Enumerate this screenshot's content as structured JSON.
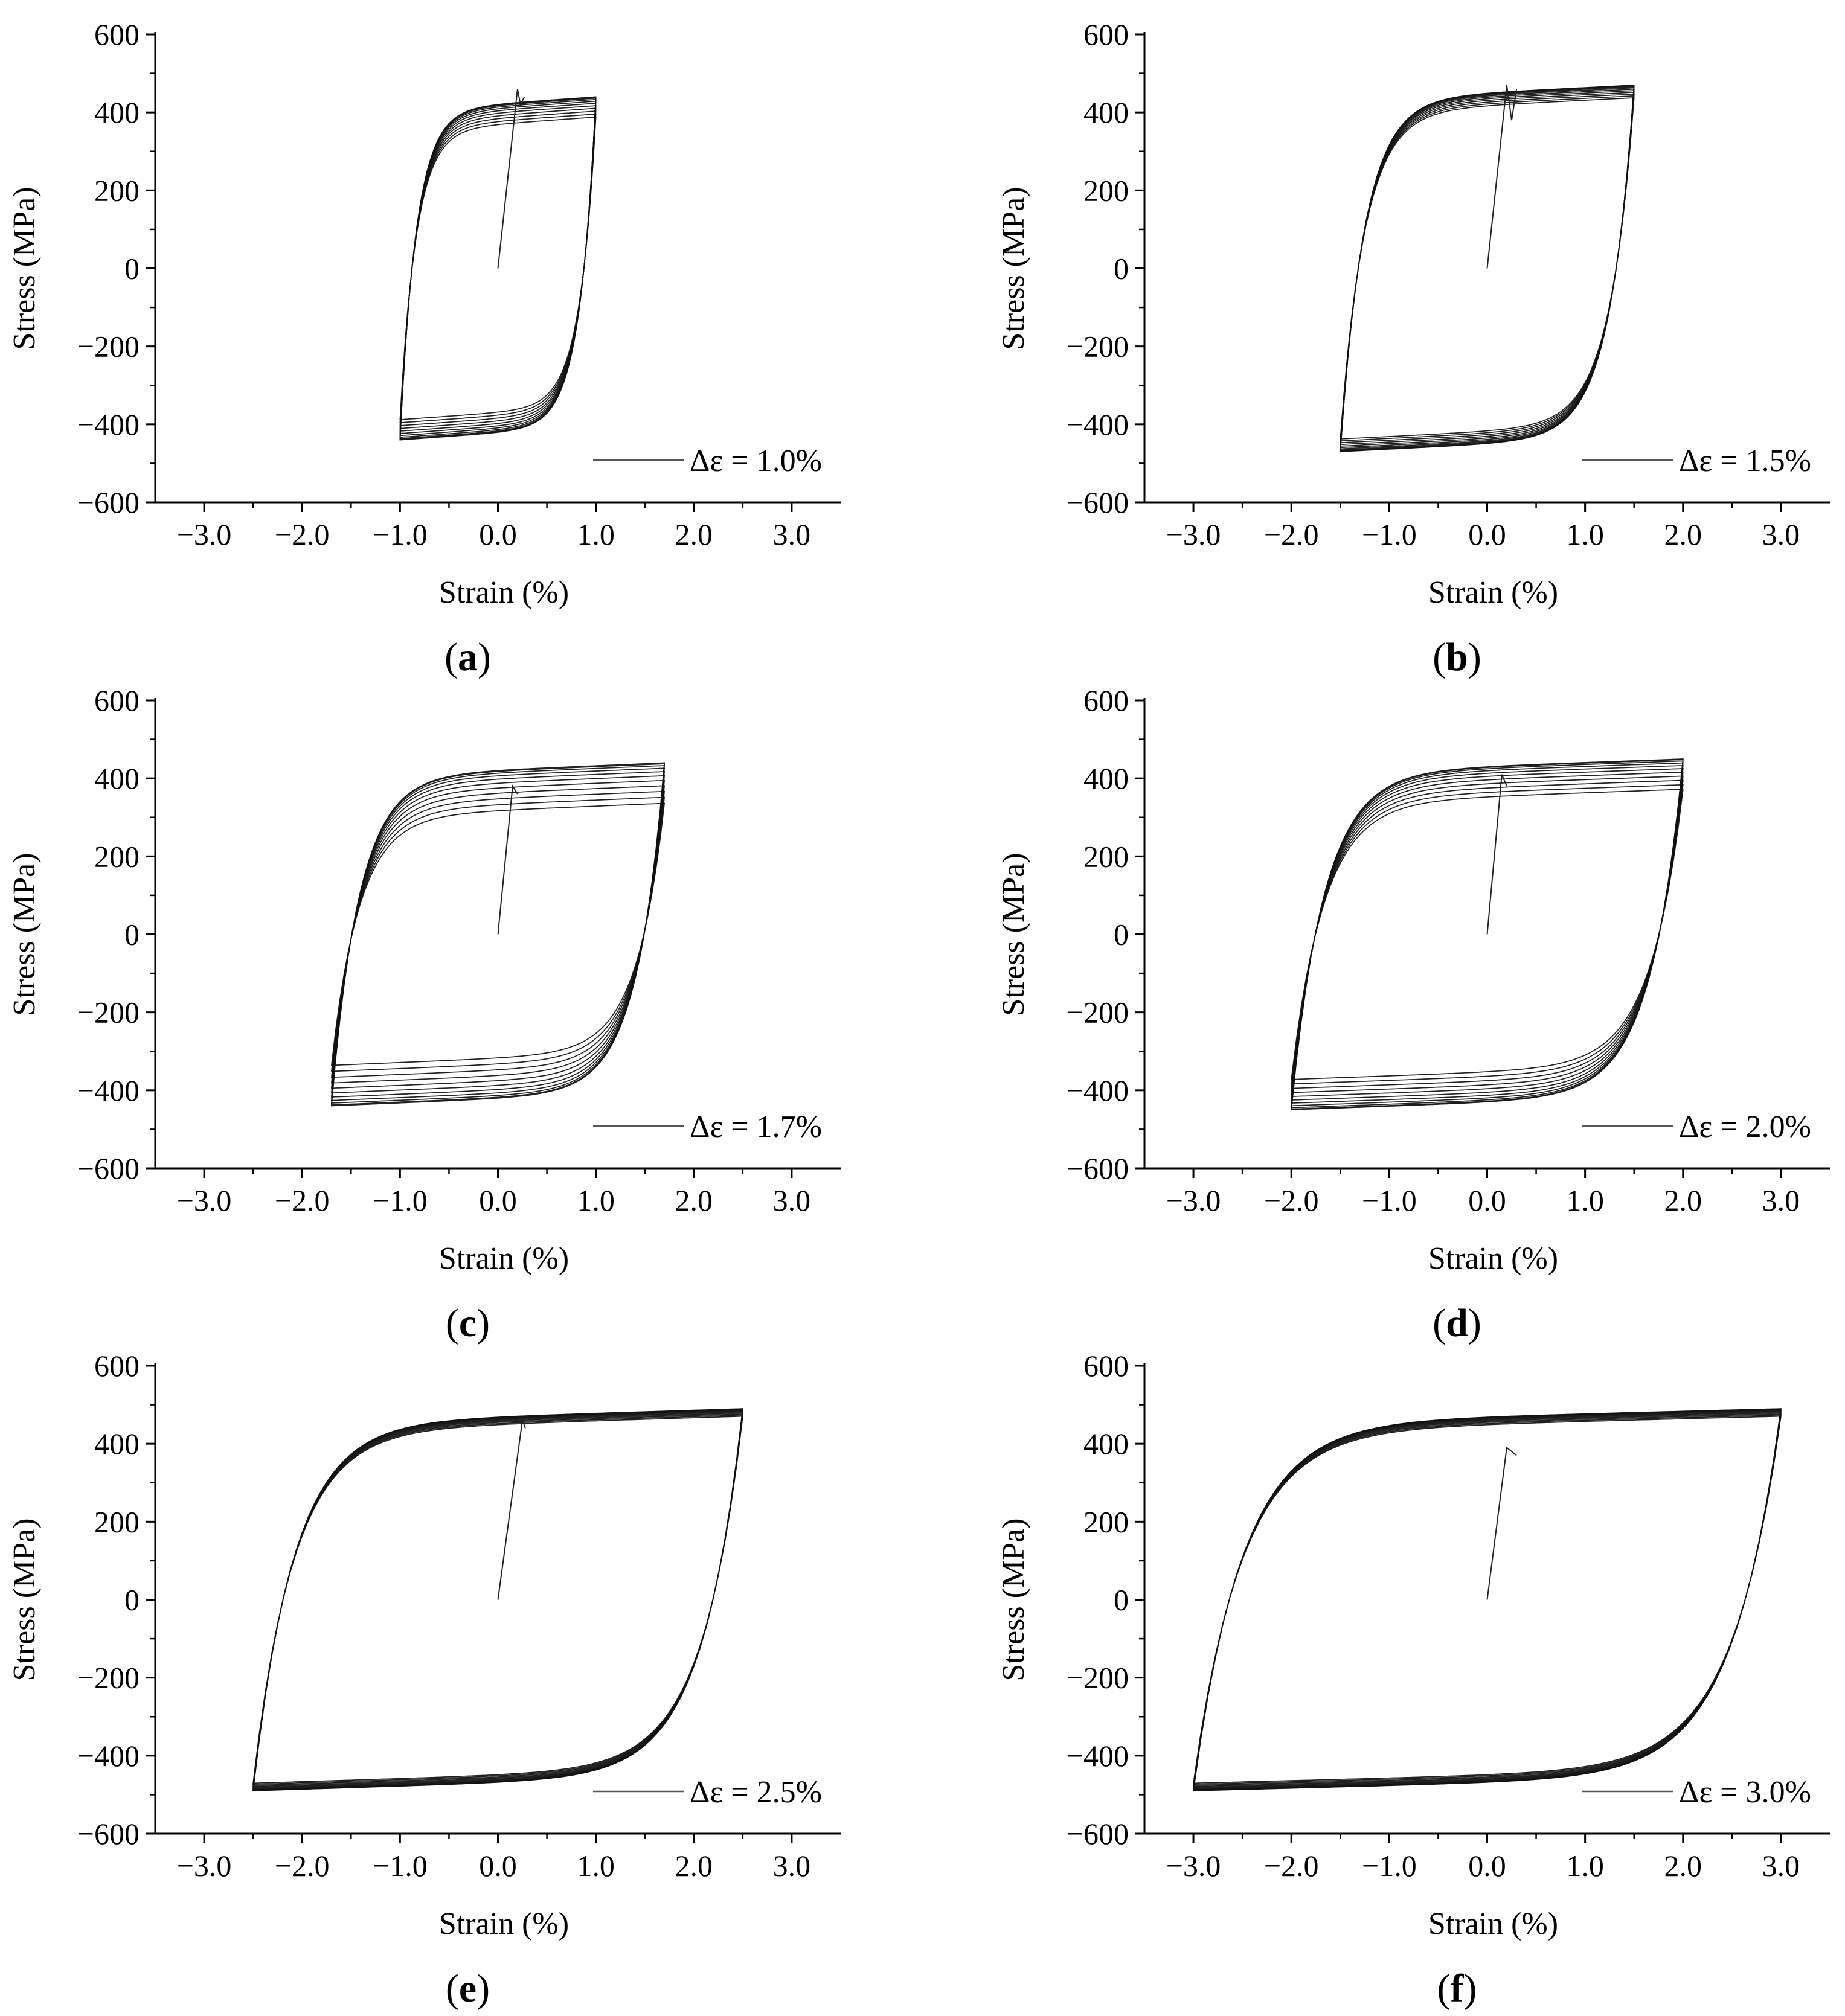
{
  "figure": {
    "panels": [
      "a",
      "b",
      "c",
      "d",
      "e",
      "f"
    ]
  },
  "chart_data": [
    {
      "id": "a",
      "panel_label": "a",
      "type": "line",
      "xlabel": "Strain (%)",
      "ylabel": "Stress (MPa)",
      "xlim": [
        -3.5,
        3.5
      ],
      "ylim": [
        -600,
        600
      ],
      "xticks": [
        -3.0,
        -2.0,
        -1.0,
        0.0,
        1.0,
        2.0,
        3.0
      ],
      "xtick_labels": [
        "−3.0",
        "−2.0",
        "−1.0",
        "0.0",
        "1.0",
        "2.0",
        "3.0"
      ],
      "yticks": [
        -600,
        -400,
        -200,
        0,
        200,
        400,
        600
      ],
      "ytick_labels": [
        "−600",
        "−400",
        "−200",
        "0",
        "200",
        "400",
        "600"
      ],
      "legend": "Δε = 1.0%",
      "legend_position": "bottom-right",
      "strain_amplitude_pct": 1.0,
      "peak_stress_max": 440,
      "peak_stress_min": 360,
      "initial_loading": {
        "x": [
          0.0,
          0.2,
          0.23,
          0.27
        ],
        "y": [
          0,
          460,
          420,
          440
        ]
      }
    },
    {
      "id": "b",
      "panel_label": "b",
      "type": "line",
      "xlabel": "Strain (%)",
      "ylabel": "Stress (MPa)",
      "xlim": [
        -3.5,
        3.5
      ],
      "ylim": [
        -600,
        600
      ],
      "xticks": [
        -3.0,
        -2.0,
        -1.0,
        0.0,
        1.0,
        2.0,
        3.0
      ],
      "xtick_labels": [
        "−3.0",
        "−2.0",
        "−1.0",
        "0.0",
        "1.0",
        "2.0",
        "3.0"
      ],
      "yticks": [
        -600,
        -400,
        -200,
        0,
        200,
        400,
        600
      ],
      "ytick_labels": [
        "−600",
        "−400",
        "−200",
        "0",
        "200",
        "400",
        "600"
      ],
      "legend": "Δε = 1.5%",
      "legend_position": "bottom-right",
      "strain_amplitude_pct": 1.5,
      "peak_stress_max": 470,
      "peak_stress_min": 420,
      "initial_loading": {
        "x": [
          0.0,
          0.2,
          0.25,
          0.3
        ],
        "y": [
          0,
          470,
          380,
          460
        ]
      }
    },
    {
      "id": "c",
      "panel_label": "c",
      "type": "line",
      "xlabel": "Strain (%)",
      "ylabel": "Stress (MPa)",
      "xlim": [
        -3.5,
        3.5
      ],
      "ylim": [
        -600,
        600
      ],
      "xticks": [
        -3.0,
        -2.0,
        -1.0,
        0.0,
        1.0,
        2.0,
        3.0
      ],
      "xtick_labels": [
        "−3.0",
        "−2.0",
        "−1.0",
        "0.0",
        "1.0",
        "2.0",
        "3.0"
      ],
      "yticks": [
        -600,
        -400,
        -200,
        0,
        200,
        400,
        600
      ],
      "ytick_labels": [
        "−600",
        "−400",
        "−200",
        "0",
        "200",
        "400",
        "600"
      ],
      "legend": "Δε = 1.7%",
      "legend_position": "bottom-right",
      "strain_amplitude_pct": 1.7,
      "peak_stress_max": 440,
      "peak_stress_min": 280,
      "initial_loading": {
        "x": [
          0.0,
          0.15,
          0.2
        ],
        "y": [
          0,
          380,
          360
        ]
      }
    },
    {
      "id": "d",
      "panel_label": "d",
      "type": "line",
      "xlabel": "Strain (%)",
      "ylabel": "Stress (MPa)",
      "xlim": [
        -3.5,
        3.5
      ],
      "ylim": [
        -600,
        600
      ],
      "xticks": [
        -3.0,
        -2.0,
        -1.0,
        0.0,
        1.0,
        2.0,
        3.0
      ],
      "xtick_labels": [
        "−3.0",
        "−2.0",
        "−1.0",
        "0.0",
        "1.0",
        "2.0",
        "3.0"
      ],
      "yticks": [
        -600,
        -400,
        -200,
        0,
        200,
        400,
        600
      ],
      "ytick_labels": [
        "−600",
        "−400",
        "−200",
        "0",
        "200",
        "400",
        "600"
      ],
      "legend": "Δε = 2.0%",
      "legend_position": "bottom-right",
      "strain_amplitude_pct": 2.0,
      "peak_stress_max": 450,
      "peak_stress_min": 330,
      "initial_loading": {
        "x": [
          0.0,
          0.15,
          0.2
        ],
        "y": [
          0,
          410,
          380
        ]
      }
    },
    {
      "id": "e",
      "panel_label": "e",
      "type": "line",
      "xlabel": "Strain (%)",
      "ylabel": "Stress (MPa)",
      "xlim": [
        -3.5,
        3.5
      ],
      "ylim": [
        -600,
        600
      ],
      "xticks": [
        -3.0,
        -2.0,
        -1.0,
        0.0,
        1.0,
        2.0,
        3.0
      ],
      "xtick_labels": [
        "−3.0",
        "−2.0",
        "−1.0",
        "0.0",
        "1.0",
        "2.0",
        "3.0"
      ],
      "yticks": [
        -600,
        -400,
        -200,
        0,
        200,
        400,
        600
      ],
      "ytick_labels": [
        "−600",
        "−400",
        "−200",
        "0",
        "200",
        "400",
        "600"
      ],
      "legend": "Δε = 2.5%",
      "legend_position": "bottom-right",
      "strain_amplitude_pct": 2.5,
      "peak_stress_max": 490,
      "peak_stress_min": 460,
      "initial_loading": {
        "x": [
          0.0,
          0.25,
          0.28
        ],
        "y": [
          0,
          460,
          440
        ]
      }
    },
    {
      "id": "f",
      "panel_label": "f",
      "type": "line",
      "xlabel": "Strain (%)",
      "ylabel": "Stress (MPa)",
      "xlim": [
        -3.5,
        3.5
      ],
      "ylim": [
        -600,
        600
      ],
      "xticks": [
        -3.0,
        -2.0,
        -1.0,
        0.0,
        1.0,
        2.0,
        3.0
      ],
      "xtick_labels": [
        "−3.0",
        "−2.0",
        "−1.0",
        "0.0",
        "1.0",
        "2.0",
        "3.0"
      ],
      "yticks": [
        -600,
        -400,
        -200,
        0,
        200,
        400,
        600
      ],
      "ytick_labels": [
        "−600",
        "−400",
        "−200",
        "0",
        "200",
        "400",
        "600"
      ],
      "legend": "Δε = 3.0%",
      "legend_position": "bottom-right",
      "strain_amplitude_pct": 3.0,
      "peak_stress_max": 490,
      "peak_stress_min": 460,
      "initial_loading": {
        "x": [
          0.0,
          0.2,
          0.3
        ],
        "y": [
          0,
          390,
          370
        ]
      }
    }
  ]
}
